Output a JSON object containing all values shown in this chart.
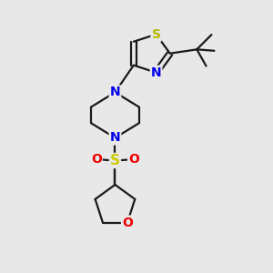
{
  "bg_color": "#e8e8e8",
  "bond_color": "#1a1a1a",
  "bond_width": 1.6,
  "atom_colors": {
    "S_thiazole": "#b8b800",
    "N": "#0000ee",
    "O": "#ee0000",
    "S_sulfone": "#cccc00"
  },
  "fig_size": [
    3.0,
    3.0
  ],
  "dpi": 100,
  "xlim": [
    0,
    10
  ],
  "ylim": [
    0,
    10
  ]
}
